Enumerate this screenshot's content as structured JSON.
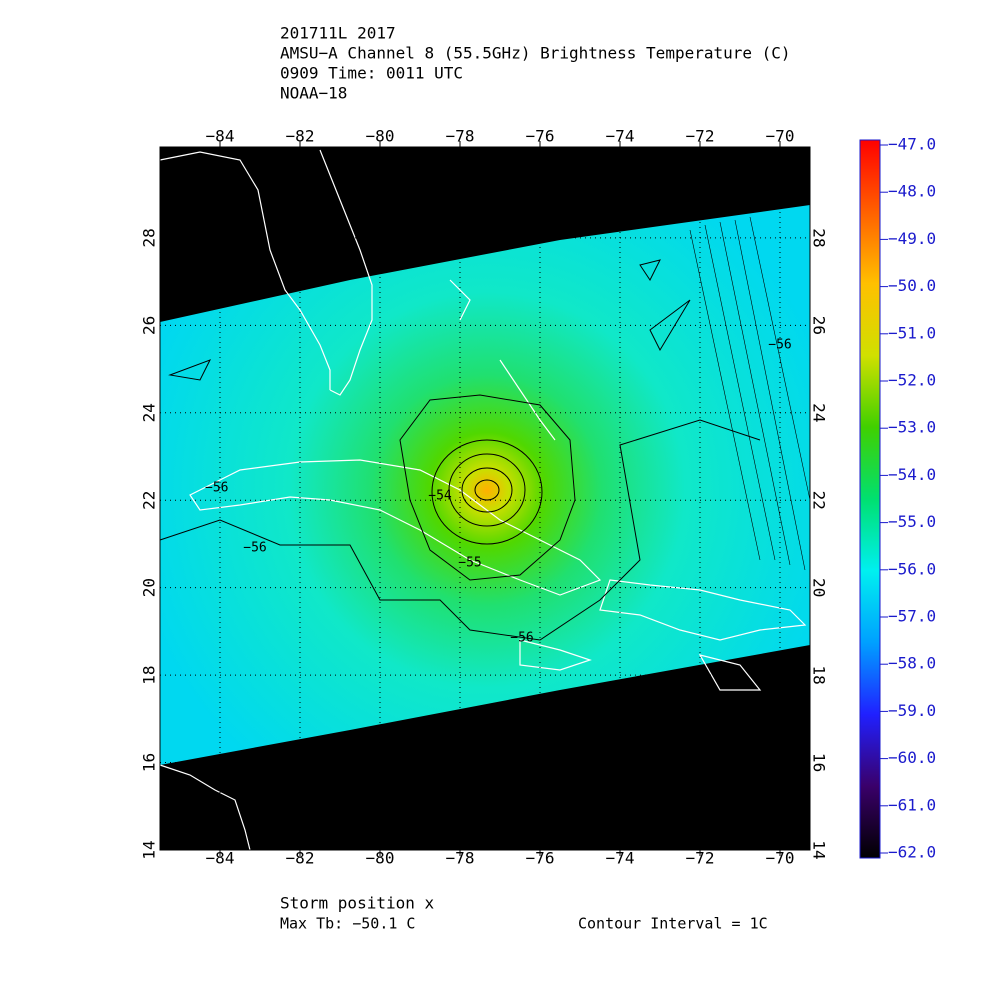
{
  "chart_data": {
    "type": "map",
    "title_lines": [
      "201711L 2017",
      "AMSU−A Channel 8 (55.5GHz) Brightness Temperature (C)",
      "0909 Time: 0011 UTC",
      "NOAA−18"
    ],
    "xlim": [
      -85.5,
      -69.25
    ],
    "ylim": [
      14,
      30.08
    ],
    "xticks": [
      {
        "value": -84,
        "label": "−84"
      },
      {
        "value": -82,
        "label": "−82"
      },
      {
        "value": -80,
        "label": "−80"
      },
      {
        "value": -78,
        "label": "−78"
      },
      {
        "value": -76,
        "label": "−76"
      },
      {
        "value": -74,
        "label": "−74"
      },
      {
        "value": -72,
        "label": "−72"
      },
      {
        "value": -70,
        "label": "−70"
      }
    ],
    "yticks": [
      14,
      16,
      18,
      20,
      22,
      24,
      26,
      28
    ],
    "grid": true,
    "colorbar": {
      "range": [
        -62,
        -47
      ],
      "colors": [
        "#000000",
        "#3a006a",
        "#2020ff",
        "#00a0ff",
        "#00f0f0",
        "#00e070",
        "#40d000",
        "#d0e000",
        "#ffc000",
        "#ff6000",
        "#ff0000"
      ],
      "ticks": [
        {
          "value": -47,
          "label": "−47.0"
        },
        {
          "value": -48,
          "label": "−48.0"
        },
        {
          "value": -49,
          "label": "−49.0"
        },
        {
          "value": -50,
          "label": "−50.0"
        },
        {
          "value": -51,
          "label": "−51.0"
        },
        {
          "value": -52,
          "label": "−52.0"
        },
        {
          "value": -53,
          "label": "−53.0"
        },
        {
          "value": -54,
          "label": "−54.0"
        },
        {
          "value": -55,
          "label": "−55.0"
        },
        {
          "value": -56,
          "label": "−56.0"
        },
        {
          "value": -57,
          "label": "−57.0"
        },
        {
          "value": -58,
          "label": "−58.0"
        },
        {
          "value": -59,
          "label": "−59.0"
        },
        {
          "value": -60,
          "label": "−60.0"
        },
        {
          "value": -61,
          "label": "−61.0"
        },
        {
          "value": -62,
          "label": "−62.0"
        }
      ]
    },
    "contour_labels": [
      "−56",
      "−56",
      "−55",
      "−54",
      "−56",
      "−56"
    ],
    "footer": {
      "storm_position": "Storm position x",
      "max_tb": "Max Tb: −50.1    C",
      "contour_interval": "Contour Interval = 1C"
    }
  }
}
